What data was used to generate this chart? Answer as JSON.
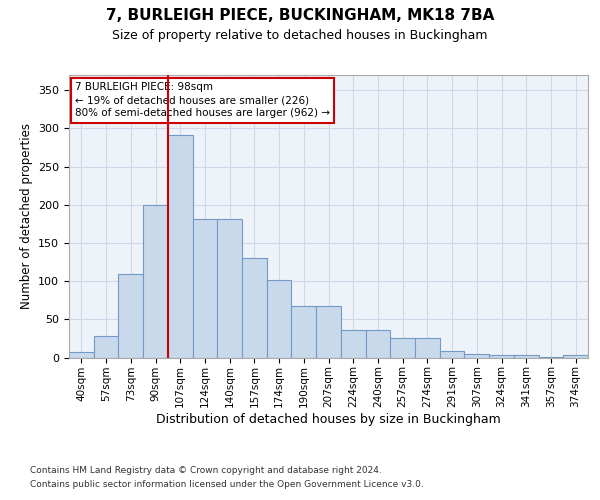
{
  "title": "7, BURLEIGH PIECE, BUCKINGHAM, MK18 7BA",
  "subtitle": "Size of property relative to detached houses in Buckingham",
  "xlabel": "Distribution of detached houses by size in Buckingham",
  "ylabel": "Number of detached properties",
  "footer_line1": "Contains HM Land Registry data © Crown copyright and database right 2024.",
  "footer_line2": "Contains public sector information licensed under the Open Government Licence v3.0.",
  "categories": [
    "40sqm",
    "57sqm",
    "73sqm",
    "90sqm",
    "107sqm",
    "124sqm",
    "140sqm",
    "157sqm",
    "174sqm",
    "190sqm",
    "207sqm",
    "224sqm",
    "240sqm",
    "257sqm",
    "274sqm",
    "291sqm",
    "307sqm",
    "324sqm",
    "341sqm",
    "357sqm",
    "374sqm"
  ],
  "values": [
    7,
    28,
    110,
    200,
    292,
    182,
    182,
    130,
    102,
    68,
    68,
    36,
    36,
    25,
    25,
    9,
    5,
    3,
    3,
    1,
    3
  ],
  "bar_color": "#c9d9ec",
  "bar_edge_color": "#7399c6",
  "property_line_label": "7 BURLEIGH PIECE: 98sqm",
  "annotation_line1": "← 19% of detached houses are smaller (226)",
  "annotation_line2": "80% of semi-detached houses are larger (962) →",
  "line_color": "#cc0000",
  "ylim": [
    0,
    370
  ],
  "yticks": [
    0,
    50,
    100,
    150,
    200,
    250,
    300,
    350
  ],
  "grid_color": "#d0d8e8",
  "background_color": "#eef2f9",
  "line_x_index": 3.5
}
